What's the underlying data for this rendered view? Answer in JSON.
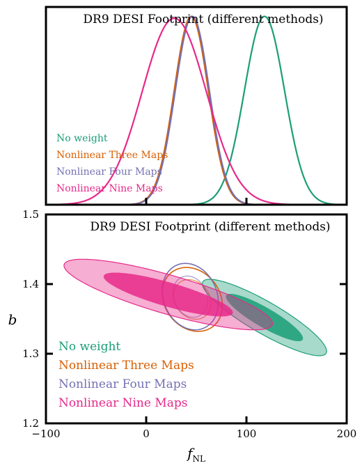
{
  "chart_data": [
    {
      "type": "line",
      "title": "DR9 DESI Footprint (different methods)",
      "xlabel": "",
      "ylabel": "",
      "xlim": [
        -100,
        200
      ],
      "ylim": [
        0,
        1.05
      ],
      "legend_placement": "lower-left",
      "series": [
        {
          "name": "No weight",
          "color": "#1b9e77",
          "mean": 118,
          "sigma": 20,
          "peak": 1.0
        },
        {
          "name": "Nonlinear Three Maps",
          "color": "#d95f02",
          "mean": 45,
          "sigma": 17,
          "peak": 1.0
        },
        {
          "name": "Nonlinear Four Maps",
          "color": "#7570b3",
          "mean": 46,
          "sigma": 17,
          "peak": 1.0
        },
        {
          "name": "Nonlinear Nine Maps",
          "color": "#e7298a",
          "mean": 28,
          "sigma": 32,
          "peak": 0.99
        }
      ]
    },
    {
      "type": "scatter",
      "title": "DR9 DESI Footprint (different methods)",
      "xlabel": "fNL",
      "ylabel": "b",
      "xlim": [
        -100,
        200
      ],
      "ylim": [
        1.2,
        1.5
      ],
      "x_ticks": [
        -100,
        0,
        100,
        200
      ],
      "x_tick_labels": [
        "−100",
        "0",
        "100",
        "200"
      ],
      "y_ticks": [
        1.2,
        1.3,
        1.4,
        1.5
      ],
      "y_tick_labels": [
        "1.2",
        "1.3",
        "1.4",
        "1.5"
      ],
      "legend_placement": "lower-left",
      "contours": [
        {
          "name": "No weight",
          "color": "#1b9e77",
          "center": [
            118,
            1.352
          ],
          "semi_major": 62,
          "semi_minor": 0.026,
          "slope": -0.00078,
          "filled": true
        },
        {
          "name": "Nonlinear Three Maps",
          "color": "#d95f02",
          "center": [
            46,
            1.378
          ],
          "semi_major": 30,
          "semi_minor": 0.045,
          "slope": -0.0003,
          "filled": false
        },
        {
          "name": "Nonlinear Four Maps",
          "color": "#7570b3",
          "center": [
            44,
            1.382
          ],
          "semi_major": 28,
          "semi_minor": 0.047,
          "slope": -0.0003,
          "filled": false
        },
        {
          "name": "Nonlinear Nine Maps",
          "color": "#e7298a",
          "center": [
            22,
            1.385
          ],
          "semi_major": 104,
          "semi_minor": 0.029,
          "slope": -0.0004,
          "filled": true
        }
      ]
    }
  ]
}
